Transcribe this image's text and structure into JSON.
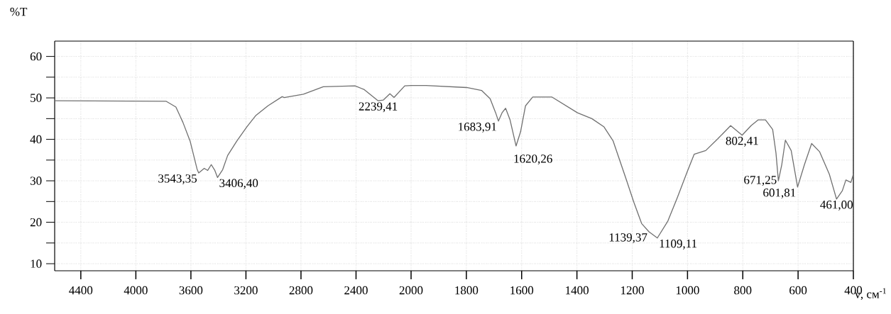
{
  "chart_data": [
    {
      "type": "line",
      "ylabel": "%T",
      "xlim": [
        4590,
        2000
      ],
      "ylim": [
        8.3,
        63.7
      ],
      "xticks": [
        4400,
        4000,
        3600,
        3200,
        2800,
        2400,
        2000
      ],
      "yticks": [
        10,
        {
          "value": 15,
          "label": null
        },
        20,
        {
          "value": 25,
          "label": null
        },
        30,
        {
          "value": 35,
          "label": null
        },
        40,
        {
          "value": 45,
          "label": null
        },
        50,
        {
          "value": 55,
          "label": null
        },
        60
      ],
      "grid": true,
      "line_style": "solid",
      "marker": "none",
      "series": [
        {
          "color": "#707070",
          "x": [
            4590,
            3781,
            3709,
            3658,
            3606,
            3555,
            3543.35,
            3503,
            3478,
            3452,
            3426,
            3406.4,
            3369,
            3333,
            3266,
            3194,
            3127,
            3040,
            2937,
            2921,
            2782,
            2638,
            2407,
            2340,
            2239.41,
            2201,
            2154,
            2124,
            2046,
            2000
          ],
          "values": [
            49.3,
            49.2,
            47.8,
            44.1,
            39.6,
            32.8,
            31.9,
            33.0,
            32.5,
            33.9,
            32.5,
            30.8,
            32.7,
            36.1,
            39.6,
            43.0,
            45.8,
            48.1,
            50.3,
            50.1,
            50.9,
            52.7,
            52.9,
            52.0,
            49.3,
            49.5,
            51.0,
            50.1,
            52.9,
            53.0
          ]
        }
      ],
      "annotations": [
        {
          "text": "3543,35",
          "x": 3543.35,
          "y": 31.9
        },
        {
          "text": "3406,40",
          "x": 3406.4,
          "y": 30.8
        },
        {
          "text": "2239,41",
          "x": 2239.41,
          "y": 49.3
        }
      ]
    },
    {
      "type": "line",
      "xlabel": "ν, см$^{-1}$",
      "xlim": [
        2000,
        400
      ],
      "ylim": [
        8.3,
        63.7
      ],
      "tick_labels": "x",
      "xticks": [
        1800,
        1600,
        1400,
        1200,
        1000,
        800,
        600,
        400
      ],
      "yticks": [
        10,
        15,
        20,
        25,
        30,
        35,
        40,
        45,
        50,
        55,
        60
      ],
      "grid": true,
      "line_style": "solid",
      "marker": "none",
      "series": [
        {
          "color": "#707070",
          "x": [
            2000,
            1946,
            1799,
            1745,
            1714,
            1694,
            1683.91,
            1671,
            1658,
            1642,
            1620.26,
            1604,
            1586,
            1560,
            1490,
            1398,
            1346,
            1302,
            1269,
            1225,
            1194,
            1166,
            1139.37,
            1109.11,
            1071,
            1037,
            1001,
            976,
            934,
            891,
            844,
            802.41,
            770,
            744,
            718,
            692,
            680,
            671.25,
            659,
            646,
            625,
            601.81,
            577,
            551,
            522,
            487,
            461.0,
            440,
            427,
            409,
            400
          ],
          "values": [
            53.0,
            53.0,
            52.5,
            51.8,
            49.8,
            46.4,
            44.4,
            46.4,
            47.5,
            44.7,
            38.4,
            41.8,
            48.1,
            50.2,
            50.2,
            46.4,
            45.0,
            43.0,
            39.6,
            31.0,
            24.8,
            19.7,
            17.7,
            16.2,
            20.3,
            25.9,
            32.2,
            36.4,
            37.3,
            40.1,
            43.3,
            41.0,
            43.3,
            44.7,
            44.7,
            42.4,
            36.7,
            30.0,
            33.9,
            39.8,
            37.3,
            28.5,
            33.9,
            39.0,
            37.0,
            31.6,
            25.6,
            27.6,
            30.2,
            29.6,
            31.6
          ]
        }
      ],
      "annotations": [
        {
          "text": "1683,91",
          "x": 1683.91,
          "y": 44.4
        },
        {
          "text": "1620,26",
          "x": 1620.26,
          "y": 38.4
        },
        {
          "text": "1139,37",
          "x": 1139.37,
          "y": 17.7
        },
        {
          "text": "1109,11",
          "x": 1109.11,
          "y": 16.2
        },
        {
          "text": "802,41",
          "x": 802.41,
          "y": 41.0
        },
        {
          "text": "671,25",
          "x": 671.25,
          "y": 30.0
        },
        {
          "text": "601,81",
          "x": 601.81,
          "y": 28.5
        },
        {
          "text": "461,00",
          "x": 461.0,
          "y": 25.6
        }
      ]
    }
  ]
}
